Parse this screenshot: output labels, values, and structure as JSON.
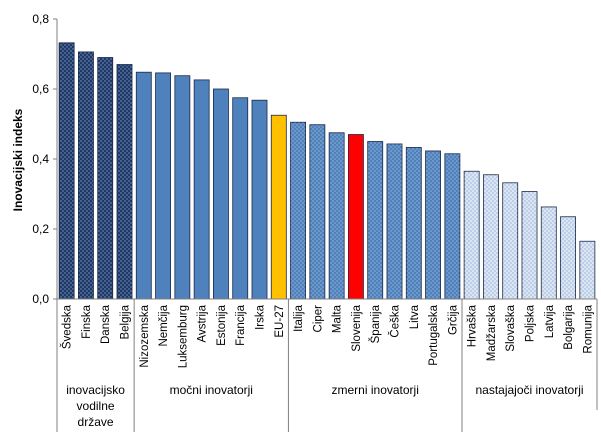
{
  "chart_data": {
    "type": "bar",
    "ylabel": "Inovacijski  indeks",
    "ylim": [
      0,
      0.8
    ],
    "yticks": [
      "0,0",
      "0,2",
      "0,4",
      "0,6",
      "0,8"
    ],
    "grid": false,
    "categories": [
      "Švedska",
      "Finska",
      "Danska",
      "Belgija",
      "Nizozemska",
      "Nemčija",
      "Luksemburg",
      "Avstrija",
      "Estonija",
      "Francija",
      "Irska",
      "EU-27",
      "Italija",
      "Ciper",
      "Malta",
      "Slovenija",
      "Španija",
      "Češka",
      "Litva",
      "Portugalska",
      "Grčija",
      "Hrvaška",
      "Madžarska",
      "Slovaška",
      "Poljska",
      "Latvija",
      "Bolgarija",
      "Romunija"
    ],
    "values": [
      0.732,
      0.706,
      0.69,
      0.67,
      0.648,
      0.646,
      0.638,
      0.626,
      0.6,
      0.575,
      0.568,
      0.525,
      0.505,
      0.498,
      0.475,
      0.47,
      0.45,
      0.443,
      0.433,
      0.423,
      0.415,
      0.365,
      0.355,
      0.332,
      0.307,
      0.263,
      0.235,
      0.165
    ],
    "bar_styles": [
      "dark",
      "dark",
      "dark",
      "dark",
      "blue",
      "blue",
      "blue",
      "blue",
      "blue",
      "blue",
      "blue",
      "eu",
      "dots",
      "dots",
      "dots",
      "slo",
      "dots",
      "dots",
      "dots",
      "dots",
      "dots",
      "light",
      "light",
      "light",
      "light",
      "light",
      "light",
      "light"
    ],
    "groups": [
      {
        "label_lines": [
          "inovacijsko",
          "vodilne",
          "države"
        ],
        "start": 0,
        "end": 3
      },
      {
        "label_lines": [
          "močni inovatorji"
        ],
        "start": 4,
        "end": 11
      },
      {
        "label_lines": [
          "zmerni inovatorji"
        ],
        "start": 12,
        "end": 20
      },
      {
        "label_lines": [
          "nastajajoči inovatorji"
        ],
        "start": 21,
        "end": 27
      }
    ],
    "colors": {
      "dark": "#1f3864",
      "blue": "#4f81bd",
      "eu": "#ffc000",
      "slo": "#ff0000",
      "dots": "#4f81bd",
      "light": "#c5d9f1"
    }
  }
}
